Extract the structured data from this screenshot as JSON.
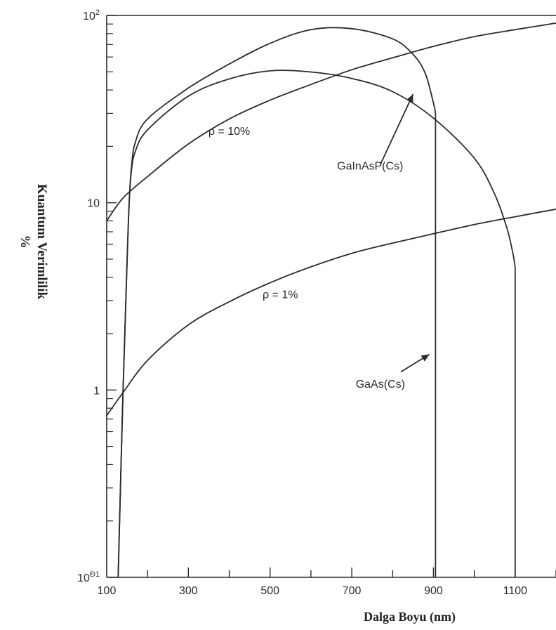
{
  "chart_data": {
    "type": "line",
    "title": "",
    "xlabel": "Dalga Boyu (nm)",
    "ylabel": "Kuantum Verimlilik",
    "ylabel_unit": "%",
    "xlim": [
      100,
      1200
    ],
    "ylim": [
      0.1,
      100
    ],
    "yscale": "log",
    "grid": false,
    "x_ticks": [
      100,
      300,
      500,
      700,
      900,
      1100
    ],
    "y_tick_labels": [
      {
        "value": 100,
        "mantissa": "10",
        "exponent": "2"
      },
      {
        "value": 10,
        "mantissa": "10",
        "exponent": ""
      },
      {
        "value": 1,
        "mantissa": "1",
        "exponent": ""
      },
      {
        "value": 0.1,
        "mantissa": "10",
        "exponent": "Đ1"
      }
    ],
    "series": [
      {
        "name": "GaInAsP(Cs)",
        "x": [
          128,
          140,
          150,
          155,
          160,
          170,
          200,
          300,
          400,
          500,
          600,
          700,
          800,
          850,
          880,
          900,
          905
        ],
        "y": [
          0.1,
          1,
          5,
          10,
          15,
          21,
          28,
          41,
          55,
          71,
          84,
          85,
          75,
          62,
          49,
          34,
          30
        ]
      },
      {
        "name": "GaAs(Cs)",
        "x": [
          128,
          140,
          150,
          155,
          160,
          170,
          200,
          300,
          400,
          500,
          600,
          700,
          800,
          900,
          1000,
          1050,
          1080,
          1095,
          1100
        ],
        "y": [
          0.1,
          1,
          5,
          10,
          14.5,
          18.8,
          24.5,
          37.1,
          45.8,
          50.6,
          49.9,
          46.1,
          39.2,
          28.3,
          17.3,
          11.1,
          7.3,
          5.3,
          4.5
        ]
      },
      {
        "name": "ρ = 10%",
        "x": [
          100,
          140,
          200,
          300,
          400,
          500,
          600,
          700,
          800,
          900,
          1000,
          1100,
          1200
        ],
        "y": [
          8.0,
          10.6,
          13.8,
          20.6,
          28.0,
          35.3,
          42.8,
          51.3,
          59.4,
          68.4,
          77.1,
          84.0,
          91.0
        ]
      },
      {
        "name": "ρ = 1%",
        "x": [
          100,
          140,
          200,
          300,
          400,
          500,
          600,
          700,
          800,
          900,
          1000,
          1100,
          1200
        ],
        "y": [
          0.73,
          0.97,
          1.44,
          2.23,
          2.96,
          3.74,
          4.55,
          5.37,
          6.09,
          6.83,
          7.65,
          8.42,
          9.24
        ]
      }
    ],
    "annotations": [
      {
        "text": "ρ  = 10%",
        "x": 400,
        "y": 23
      },
      {
        "text": "GaInAsP(Cs)",
        "x": 745,
        "y": 15
      },
      {
        "text": "ρ  = 1%",
        "x": 525,
        "y": 3.1
      },
      {
        "text": "GaAs(Cs)",
        "x": 770,
        "y": 1.03
      }
    ],
    "arrows": [
      {
        "label": "GaInAsP(Cs)",
        "from": [
          770,
          16
        ],
        "to": [
          850,
          38
        ]
      },
      {
        "label": "GaAs(Cs)",
        "from": [
          820,
          1.25
        ],
        "to": [
          890,
          1.55
        ]
      }
    ]
  }
}
